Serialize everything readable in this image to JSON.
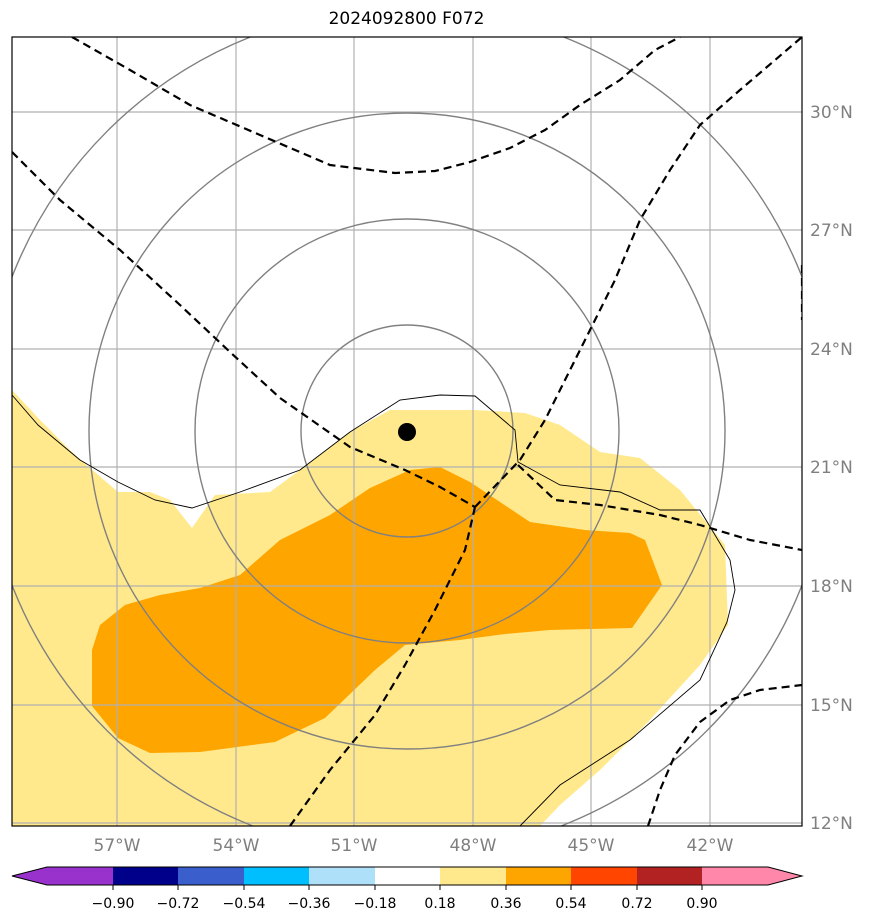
{
  "title": "2024092800 F072",
  "map": {
    "lon_labels": [
      "57°W",
      "54°W",
      "51°W",
      "48°W",
      "45°W",
      "42°W"
    ],
    "lat_labels": [
      "30°N",
      "27°N",
      "24°N",
      "21°N",
      "18°N",
      "15°N",
      "12°N"
    ],
    "storm_marker": "filled-circle",
    "colors": {
      "fill_low": "#ffe98c",
      "fill_high": "#ffa500",
      "gridline": "#b0b0b0",
      "circle": "#808080"
    }
  },
  "colorbar": {
    "ticks": [
      "−0.90",
      "−0.72",
      "−0.54",
      "−0.36",
      "−0.18",
      "0.18",
      "0.36",
      "0.54",
      "0.72",
      "0.90"
    ],
    "colors": [
      "#9932cc",
      "#00008b",
      "#3a5fcd",
      "#00bfff",
      "#afe0fa",
      "#ffffff",
      "#ffe98c",
      "#ffa500",
      "#ff4500",
      "#b22222",
      "#ff88aa"
    ]
  }
}
